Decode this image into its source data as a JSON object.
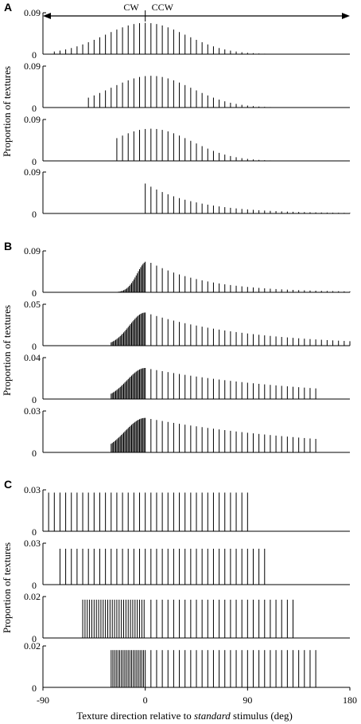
{
  "figure": {
    "panel_letters": [
      "A",
      "B",
      "C"
    ],
    "ylabel": "Proportion of textures",
    "xlabel_parts": [
      "Texture direction relative to ",
      "standard",
      " stimulus (deg)"
    ],
    "x_ticks": [
      "-90",
      "0",
      "90",
      "180"
    ],
    "direction_labels": {
      "left": "CW",
      "right": "CCW"
    }
  },
  "chart_data": [
    {
      "type": "bar",
      "group": "A",
      "ylim": [
        0,
        0.09
      ],
      "y_tick_labels": [
        "0.09",
        "0"
      ],
      "values": {
        "kind": "gauss",
        "range": [
          -80,
          180
        ],
        "step": 5,
        "mu": 0,
        "sigma": 36,
        "peak": 0.068
      }
    },
    {
      "type": "bar",
      "group": "A",
      "ylim": [
        0,
        0.09
      ],
      "y_tick_labels": [
        "0.09",
        "0"
      ],
      "values": {
        "kind": "gauss",
        "range": [
          -50,
          180
        ],
        "step": 5,
        "mu": 5,
        "sigma": 36,
        "peak": 0.069
      }
    },
    {
      "type": "bar",
      "group": "A",
      "ylim": [
        0,
        0.09
      ],
      "y_tick_labels": [
        "0.09",
        "0"
      ],
      "values": {
        "kind": "gauss",
        "range": [
          -25,
          150
        ],
        "step": 5,
        "mu": 5,
        "sigma": 36,
        "peak": 0.07
      }
    },
    {
      "type": "bar",
      "group": "A",
      "ylim": [
        0,
        0.09
      ],
      "y_tick_labels": [
        "0.09",
        "0"
      ],
      "values": {
        "kind": "half",
        "range": [
          0,
          180
        ],
        "step": 5,
        "scale": 45,
        "peak": 0.065
      }
    },
    {
      "type": "bar",
      "group": "B",
      "ylim": [
        0,
        0.09
      ],
      "y_tick_labels": [
        "0.09",
        "0"
      ],
      "values": {
        "kind": "asym",
        "range": [
          -25,
          180
        ],
        "dense_step": 1,
        "step": 5,
        "rise_sigma": 9,
        "decay_scale": 50,
        "peak_pos": 2,
        "peak": 0.068
      }
    },
    {
      "type": "bar",
      "group": "B",
      "ylim": [
        0,
        0.05
      ],
      "y_tick_labels": [
        "0.05",
        "0"
      ],
      "values": {
        "kind": "asym",
        "range": [
          -30,
          180
        ],
        "dense_step": 1,
        "step": 5,
        "rise_sigma": 14,
        "decay_scale": 90,
        "peak_pos": 0,
        "peak": 0.04
      }
    },
    {
      "type": "bar",
      "group": "B",
      "ylim": [
        0,
        0.04
      ],
      "y_tick_labels": [
        "0.04",
        "0"
      ],
      "values": {
        "kind": "asym",
        "range": [
          -30,
          150
        ],
        "dense_step": 1,
        "step": 5,
        "rise_sigma": 16,
        "decay_scale": 140,
        "peak_pos": 0,
        "peak": 0.03
      }
    },
    {
      "type": "bar",
      "group": "B",
      "ylim": [
        0,
        0.03
      ],
      "y_tick_labels": [
        "0.03",
        "0"
      ],
      "values": {
        "kind": "asym",
        "range": [
          -30,
          150
        ],
        "dense_step": 1,
        "step": 5,
        "rise_sigma": 18,
        "decay_scale": 160,
        "peak_pos": 0,
        "peak": 0.025
      }
    },
    {
      "type": "bar",
      "group": "C",
      "ylim": [
        0,
        0.03
      ],
      "y_tick_labels": [
        "0.03",
        "0"
      ],
      "values": {
        "kind": "uniform",
        "range": [
          -90,
          90
        ],
        "step": 5,
        "value": 0.028
      }
    },
    {
      "type": "bar",
      "group": "C",
      "ylim": [
        0,
        0.03
      ],
      "y_tick_labels": [
        "0.03",
        "0"
      ],
      "values": {
        "kind": "uniform",
        "range": [
          -75,
          105
        ],
        "step": 5,
        "value": 0.026
      }
    },
    {
      "type": "bar",
      "group": "C",
      "ylim": [
        0,
        0.02
      ],
      "y_tick_labels": [
        "0.02",
        "0"
      ],
      "values": {
        "kind": "split",
        "ranges": [
          [
            -55,
            0
          ],
          [
            0,
            130
          ]
        ],
        "steps": [
          2,
          5
        ],
        "value": 0.0185
      }
    },
    {
      "type": "bar",
      "group": "C",
      "ylim": [
        0,
        0.02
      ],
      "y_tick_labels": [
        "0.02",
        "0"
      ],
      "values": {
        "kind": "split",
        "ranges": [
          [
            -30,
            0
          ],
          [
            0,
            150
          ]
        ],
        "steps": [
          1.5,
          5
        ],
        "value": 0.018
      }
    }
  ]
}
